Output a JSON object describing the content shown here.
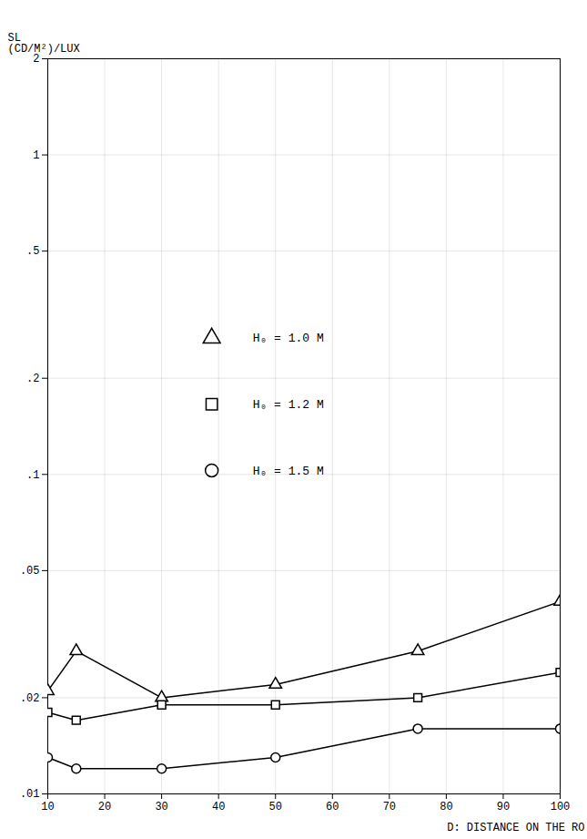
{
  "chart_data": {
    "type": "line",
    "ylabel": "SL\n(CD/M²)/LUX",
    "xlabel": "D: DISTANCE ON THE RO",
    "x": [
      10,
      15,
      30,
      50,
      75,
      100
    ],
    "series": [
      {
        "name": "H₀ = 1.0 M",
        "marker": "triangle",
        "values": [
          0.021,
          0.028,
          0.02,
          0.022,
          0.028,
          0.04
        ]
      },
      {
        "name": "H₀ = 1.2 M",
        "marker": "square",
        "values": [
          0.018,
          0.017,
          0.019,
          0.019,
          0.02,
          0.024
        ]
      },
      {
        "name": "H₀ = 1.5 M",
        "marker": "circle",
        "values": [
          0.013,
          0.012,
          0.012,
          0.013,
          0.016,
          0.016
        ]
      }
    ],
    "color": "#000000",
    "log": "y",
    "xlim": [
      10,
      100
    ],
    "xticks": [
      10,
      20,
      30,
      40,
      50,
      60,
      70,
      80,
      90,
      100
    ],
    "ylim": [
      0.01,
      2.0
    ],
    "yticks": [
      {
        "value": 0.01,
        "label": ".01"
      },
      {
        "value": 0.02,
        "label": ".02"
      },
      {
        "value": 0.05,
        "label": ".05"
      },
      {
        "value": 0.1,
        "label": ".1"
      },
      {
        "value": 0.2,
        "label": ".2"
      },
      {
        "value": 0.5,
        "label": ".5"
      },
      1,
      2
    ],
    "grid": true,
    "legend": "top"
  }
}
